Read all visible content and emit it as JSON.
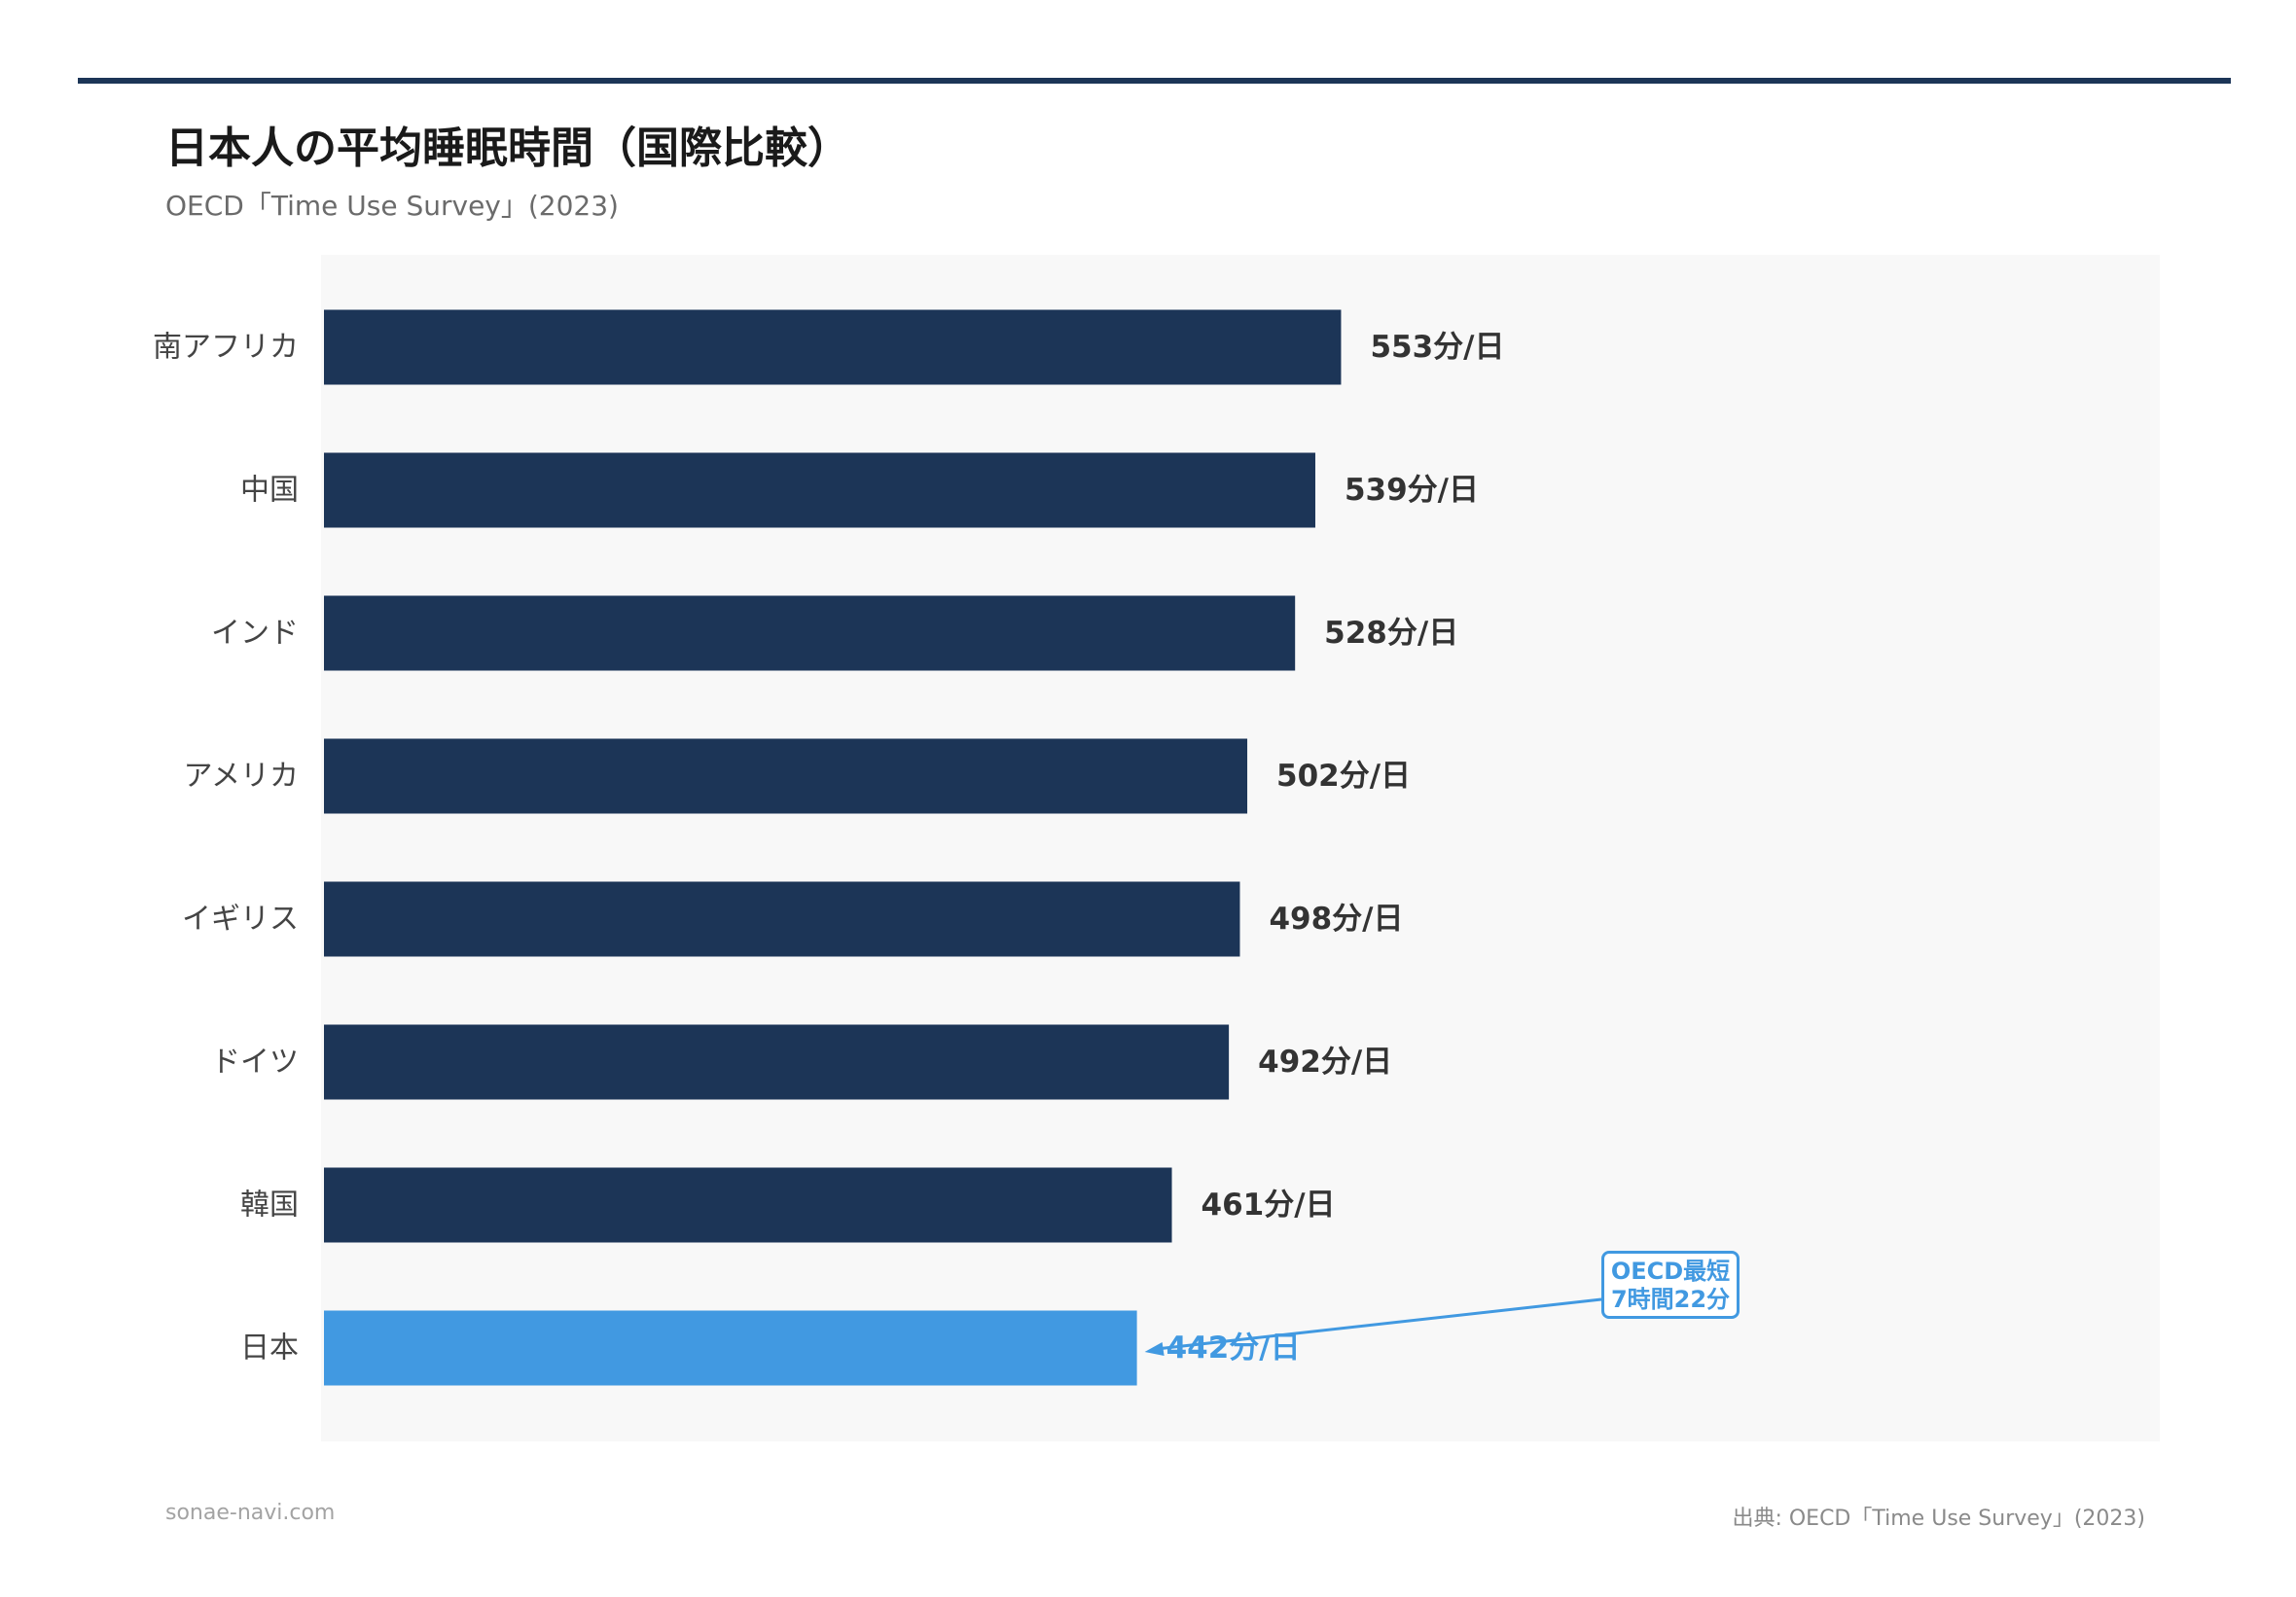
{
  "title": "日本人の平均睡眠時間（国際比較）",
  "subtitle": "OECD「Time Use Survey」(2023)",
  "footer": {
    "site": "sonae-navi.com",
    "source": "出典: OECD「Time Use Survey」(2023)"
  },
  "annotation": {
    "line1": "OECD最短",
    "line2": "7時間22分"
  },
  "colors": {
    "bar": "#1c3557",
    "highlight": "#4199e1",
    "value_text": "#333333"
  },
  "chart_data": {
    "type": "bar",
    "orientation": "horizontal",
    "categories": [
      "南アフリカ",
      "中国",
      "インド",
      "アメリカ",
      "イギリス",
      "ドイツ",
      "韓国",
      "日本"
    ],
    "values": [
      553,
      539,
      528,
      502,
      498,
      492,
      461,
      442
    ],
    "value_labels": [
      "553分/日",
      "539分/日",
      "528分/日",
      "502分/日",
      "498分/日",
      "492分/日",
      "461分/日",
      "442分/日"
    ],
    "highlight_category": "日本",
    "xlim": [
      0,
      750
    ],
    "grid": false,
    "legend": "none"
  }
}
